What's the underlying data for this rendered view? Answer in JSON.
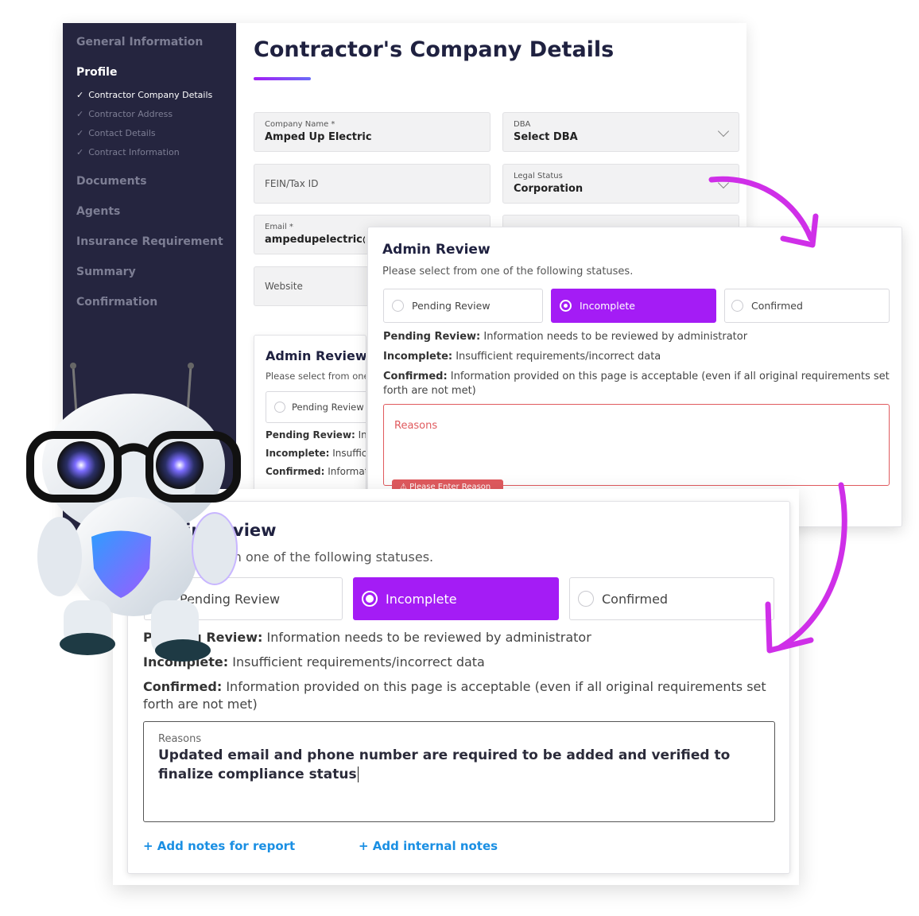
{
  "sidebar": {
    "general": "General Information",
    "profile": "Profile",
    "sub_items": [
      {
        "label": "Contractor Company Details",
        "active": true
      },
      {
        "label": "Contractor Address",
        "active": false
      },
      {
        "label": "Contact Details",
        "active": false
      },
      {
        "label": "Contract Information",
        "active": false
      }
    ],
    "documents": "Documents",
    "agents": "Agents",
    "insurance": "Insurance Requirement",
    "summary": "Summary",
    "confirmation": "Confirmation"
  },
  "page": {
    "title": "Contractor's Company Details"
  },
  "form": {
    "company_name": {
      "label": "Company Name *",
      "value": "Amped Up Electric"
    },
    "dba": {
      "label": "DBA",
      "value": "Select DBA"
    },
    "fein": {
      "placeholder": "FEIN/Tax ID"
    },
    "legal_status": {
      "label": "Legal Status",
      "value": "Corporation"
    },
    "email": {
      "label": "Email *",
      "value": "ampedupelectric@r"
    },
    "website": {
      "placeholder": "Website"
    }
  },
  "review": {
    "title": "Admin Review",
    "subtitle": "Please select from one of the following statuses.",
    "options": [
      "Pending Review",
      "Incomplete",
      "Confirmed"
    ],
    "selected": "Incomplete",
    "desc": [
      {
        "term": "Pending Review:",
        "text": " Information needs to be reviewed by administrator"
      },
      {
        "term": "Incomplete:",
        "text": " Insufficient requirements/incorrect data"
      },
      {
        "term": "Confirmed:",
        "text": " Information provided on this page is acceptable (even if all original requirements set forth are not met)"
      }
    ],
    "reasons_label": "Reasons",
    "error": "Please Enter Reason",
    "reasons_value": "Updated email and phone number are required to be added and verified to finalize compliance status",
    "add_report": "+ Add notes for report",
    "add_internal": "+ Add internal notes"
  },
  "colors": {
    "accent": "#a41cf5",
    "sidebar": "#25253f",
    "error": "#e05a5e",
    "link": "#1a8fe3",
    "arrow": "#cf2fe8"
  }
}
